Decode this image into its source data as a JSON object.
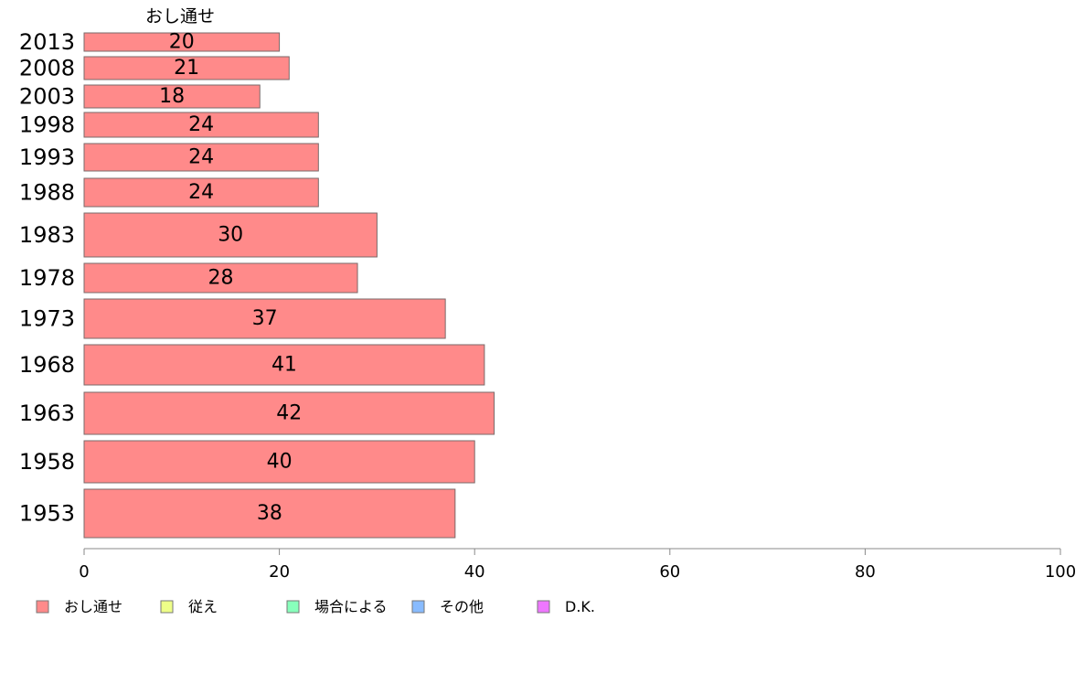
{
  "chart_data": {
    "type": "bar",
    "orientation": "horizontal",
    "series_title": "おし通せ",
    "categories": [
      "2013",
      "2008",
      "2003",
      "1998",
      "1993",
      "1988",
      "1983",
      "1978",
      "1973",
      "1968",
      "1963",
      "1958",
      "1953"
    ],
    "series": [
      {
        "name": "おし通せ",
        "color": "#ff8a8a",
        "values": [
          20,
          21,
          18,
          24,
          24,
          24,
          30,
          28,
          37,
          41,
          42,
          40,
          38
        ],
        "labels": [
          "20",
          "21",
          "18",
          "24",
          "24",
          "24",
          "30",
          "28",
          "37",
          "41",
          "42",
          "40",
          "38"
        ]
      }
    ],
    "xlim": [
      0,
      100
    ],
    "x_ticks": [
      "0",
      "20",
      "40",
      "60",
      "80",
      "100"
    ],
    "grid": false,
    "legend_position": "bottom",
    "legend": [
      {
        "label": "おし通せ",
        "color": "#ff8a8a"
      },
      {
        "label": "従え",
        "color": "#eeff88"
      },
      {
        "label": "場合による",
        "color": "#88ffbb"
      },
      {
        "label": "その他",
        "color": "#88bbff"
      },
      {
        "label": "D.K.",
        "color": "#ee77ff"
      }
    ]
  }
}
